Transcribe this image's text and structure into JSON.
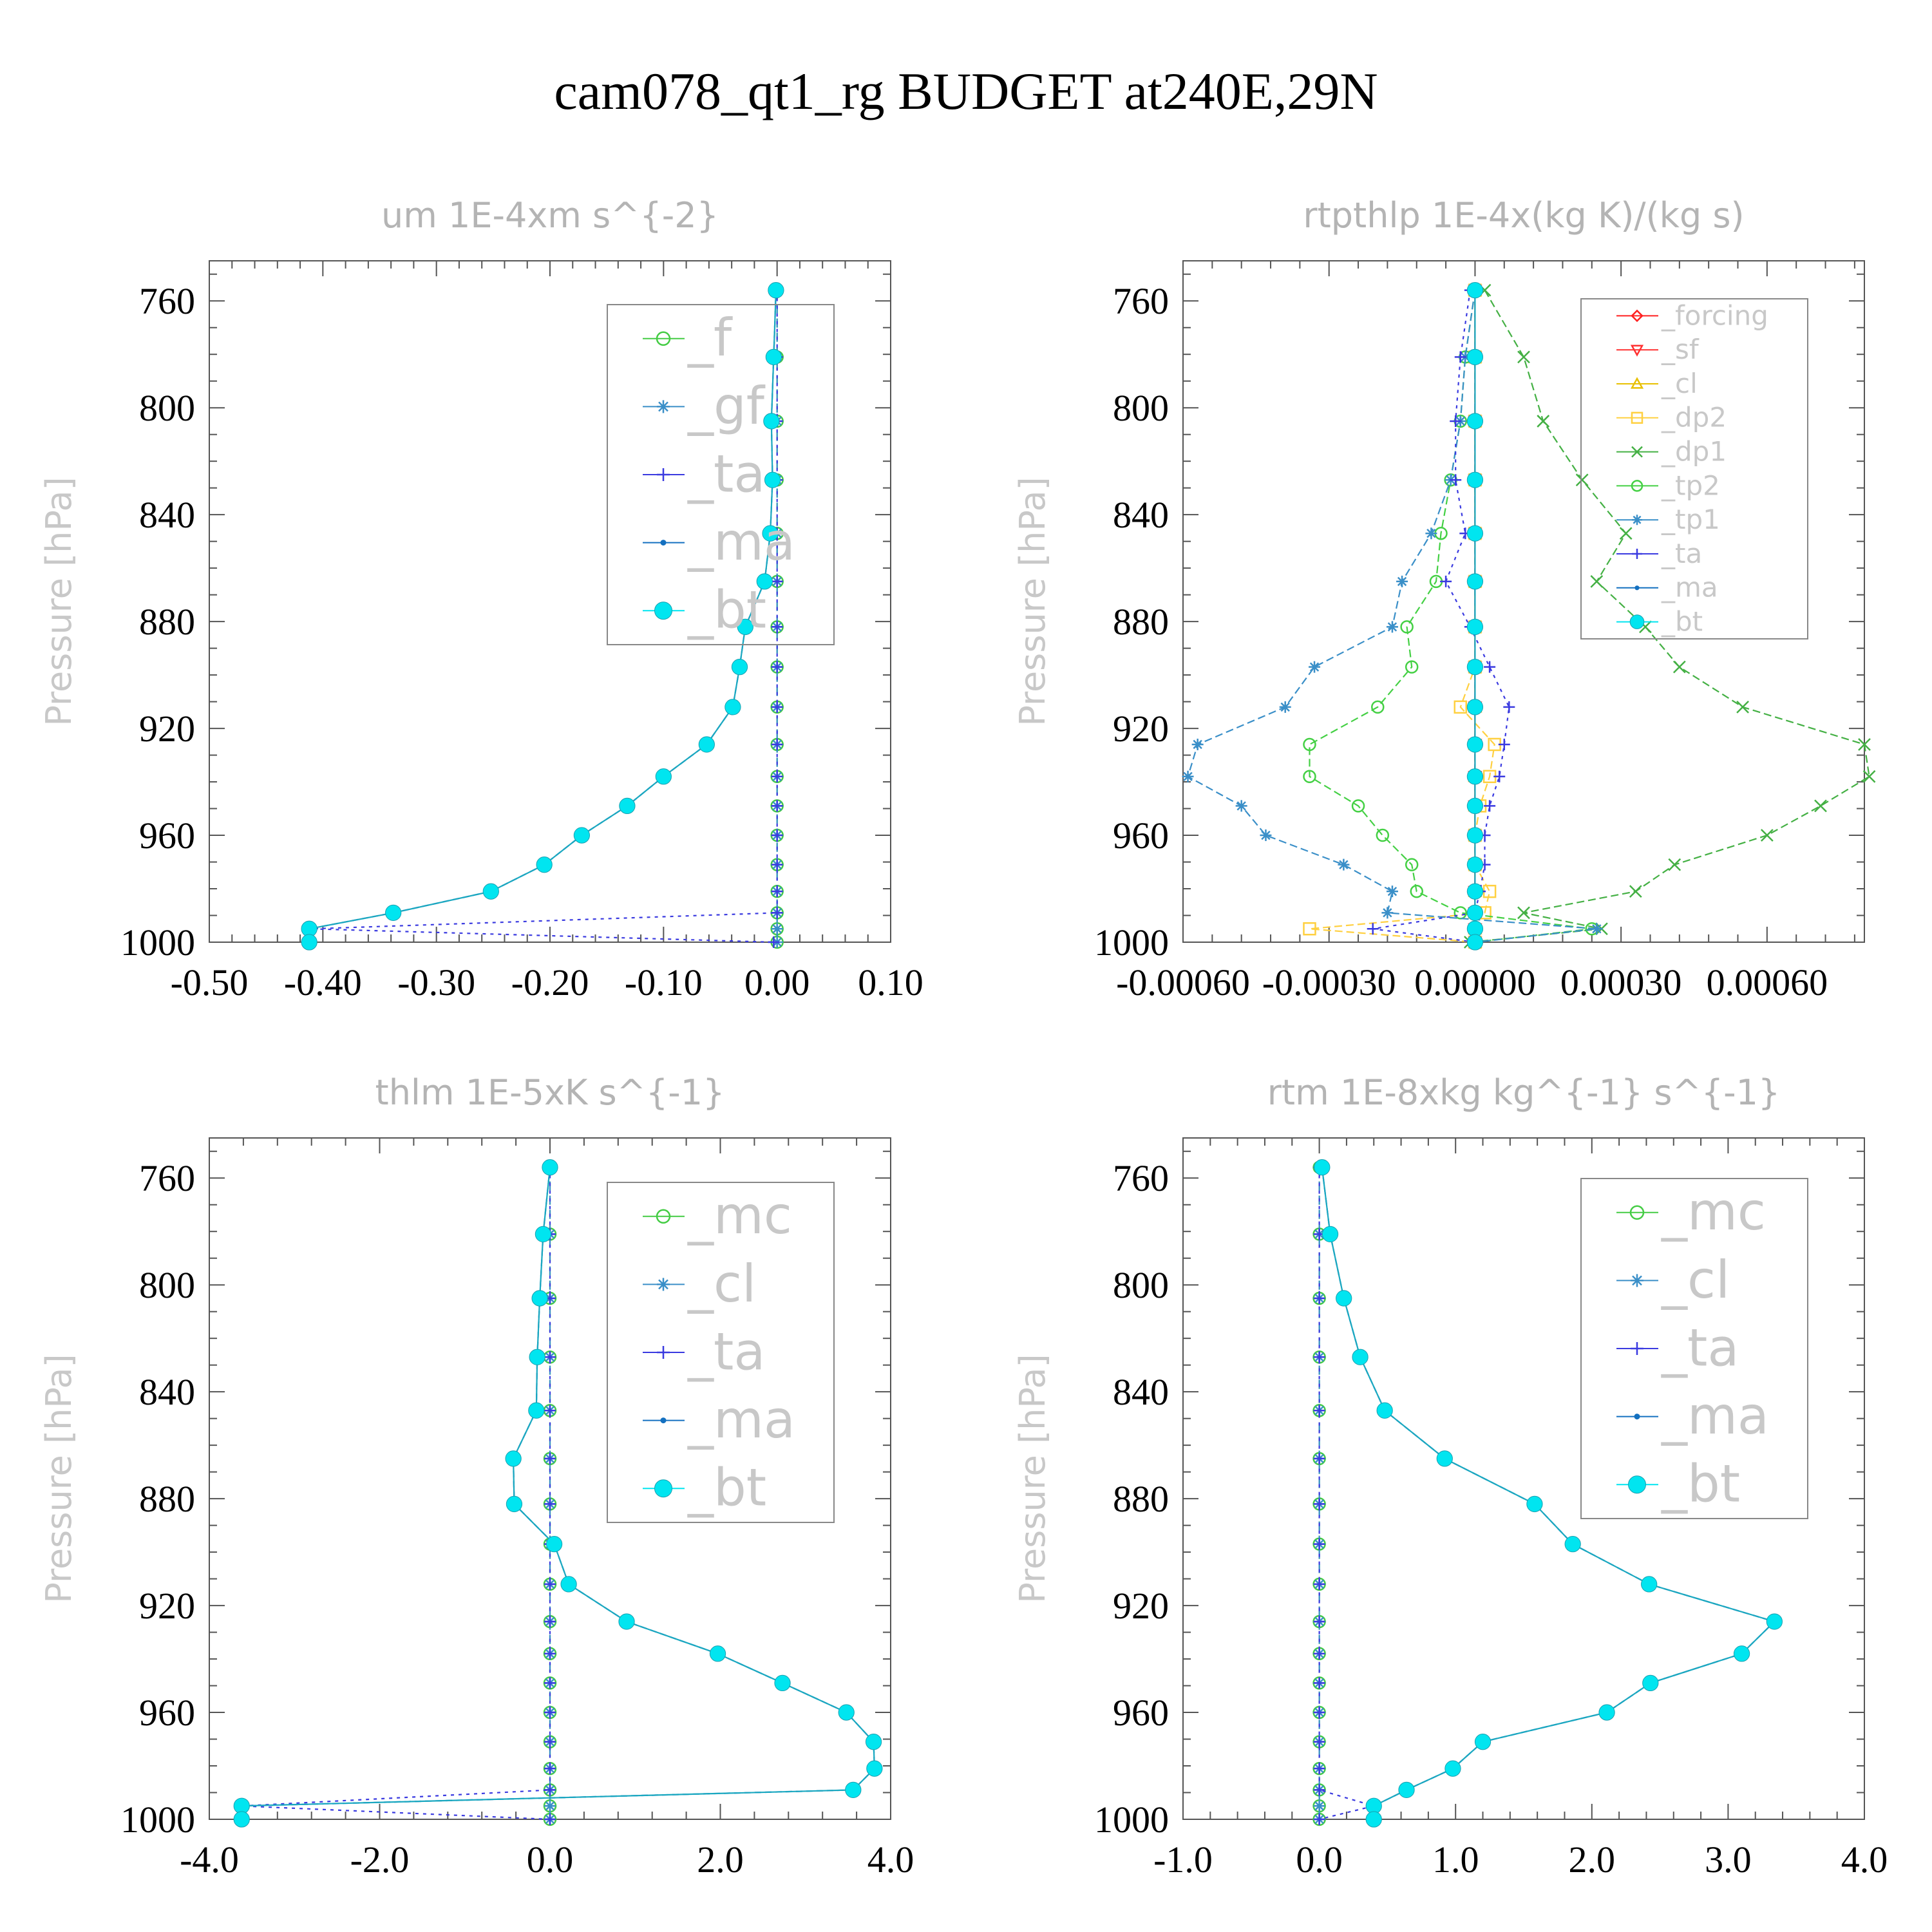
{
  "figure_title": "cam078_qt1_rg  BUDGET at240E,29N",
  "colors": {
    "_f": "#44cc44",
    "_gf": "#3a8fc8",
    "_ta": "#3a3ae0",
    "_ma": "#1470c0",
    "_bt": "#00e5f0",
    "_forcing": "#ff2020",
    "_sf": "#ff3030",
    "_cl": "#e8c000",
    "_dp2": "#ffd040",
    "_dp1": "#44b044",
    "_tp2": "#44d044",
    "_tp1": "#3a8fc8",
    "_mc": "#44cc44",
    "_cl_b": "#3a8fc8"
  },
  "chart_data": [
    {
      "type": "line",
      "title": "um  1E-4xm s^{-2}",
      "ylabel": "Pressure [hPa]",
      "xlim": [
        -0.5,
        0.1
      ],
      "ylim": [
        1000,
        745
      ],
      "xticks": [
        "-0.50",
        "-0.40",
        "-0.30",
        "-0.20",
        "-0.10",
        "0.00",
        "0.10"
      ],
      "xtick_values": [
        -0.5,
        -0.4,
        -0.3,
        -0.2,
        -0.1,
        0.0,
        0.1
      ],
      "yticks": [
        "760",
        "800",
        "840",
        "880",
        "920",
        "960",
        "1000"
      ],
      "ytick_values": [
        760,
        800,
        840,
        880,
        920,
        960,
        1000
      ],
      "pressure": [
        756,
        781,
        805,
        827,
        847,
        865,
        882,
        897,
        912,
        926,
        938,
        949,
        960,
        971,
        981,
        989,
        995,
        1000
      ],
      "series": [
        {
          "name": "_f",
          "color": "_f",
          "marker": "circle",
          "dash": "14,8",
          "values": [
            0,
            0,
            0,
            0,
            0,
            0,
            0,
            0,
            0,
            0,
            0,
            0,
            0,
            0,
            0,
            0,
            0,
            0
          ]
        },
        {
          "name": "_gf",
          "color": "_gf",
          "marker": "star",
          "dash": "14,8",
          "values": [
            0,
            0,
            0,
            0,
            0,
            0,
            0,
            0,
            0,
            0,
            0,
            0,
            0,
            0,
            0,
            0,
            0,
            0
          ]
        },
        {
          "name": "_ta",
          "color": "_ta",
          "marker": "plus",
          "dash": "5,7",
          "values": [
            0,
            0,
            0,
            0,
            0,
            0,
            0,
            0,
            0,
            0,
            0,
            0,
            0,
            0,
            0,
            0,
            -0.41,
            -0.003
          ]
        },
        {
          "name": "_ma",
          "color": "_ma",
          "marker": "dot",
          "dash": "10,6",
          "values": [
            -0.001,
            -0.003,
            -0.005,
            -0.004,
            -0.006,
            -0.011,
            -0.028,
            -0.033,
            -0.039,
            -0.062,
            -0.1,
            -0.132,
            -0.172,
            -0.205,
            -0.252,
            -0.338,
            -0.412,
            -0.412
          ]
        },
        {
          "name": "_bt",
          "color": "_bt",
          "marker": "bigdot",
          "dash": "none",
          "values": [
            -0.001,
            -0.003,
            -0.005,
            -0.004,
            -0.006,
            -0.011,
            -0.028,
            -0.033,
            -0.039,
            -0.062,
            -0.1,
            -0.132,
            -0.172,
            -0.205,
            -0.252,
            -0.338,
            -0.412,
            -0.412
          ]
        }
      ],
      "legend": [
        "_f",
        "_gf",
        "_ta",
        "_ma",
        "_bt"
      ]
    },
    {
      "type": "line",
      "title": "rtpthlp  1E-4x(kg K)/(kg s)",
      "ylabel": "Pressure [hPa]",
      "xlim": [
        -0.0006,
        0.0008
      ],
      "ylim": [
        1000,
        745
      ],
      "xticks": [
        "-0.00060",
        "-0.00030",
        "0.00000",
        "0.00030",
        "0.00060"
      ],
      "xtick_values": [
        -0.0006,
        -0.0003,
        0.0,
        0.0003,
        0.0006
      ],
      "yticks": [
        "760",
        "800",
        "840",
        "880",
        "920",
        "960",
        "1000"
      ],
      "ytick_values": [
        760,
        800,
        840,
        880,
        920,
        960,
        1000
      ],
      "pressure": [
        756,
        781,
        805,
        827,
        847,
        865,
        882,
        897,
        912,
        926,
        938,
        949,
        960,
        971,
        981,
        989,
        995,
        1000
      ],
      "series": [
        {
          "name": "_forcing",
          "color": "_forcing",
          "marker": "diamond",
          "dash": "none",
          "values": [
            0,
            0,
            0,
            0,
            0,
            0,
            0,
            0,
            0,
            0,
            0,
            0,
            0,
            0,
            0,
            0,
            0,
            0
          ]
        },
        {
          "name": "_sf",
          "color": "_sf",
          "marker": "tri-down",
          "dash": "12,6",
          "values": [
            0,
            0,
            0,
            0,
            0,
            0,
            0,
            0,
            0,
            0,
            0,
            0,
            0,
            0,
            0,
            0,
            0,
            0
          ]
        },
        {
          "name": "_cl",
          "color": "_cl",
          "marker": "tri-up",
          "dash": "12,6",
          "values": [
            0,
            0,
            0,
            0,
            0,
            0,
            0,
            0,
            0,
            0,
            0,
            0,
            0,
            0,
            0,
            0,
            0,
            0
          ]
        },
        {
          "name": "_dp2",
          "color": "_dp2",
          "marker": "square",
          "dash": "12,6",
          "values": [
            0,
            0,
            0,
            0,
            0,
            0,
            0,
            0,
            -3e-05,
            4e-05,
            3e-05,
            1e-05,
            0,
            0,
            3e-05,
            2e-05,
            -0.00034,
            0
          ]
        },
        {
          "name": "_dp1",
          "color": "_dp1",
          "marker": "cross",
          "dash": "12,6",
          "values": [
            2e-05,
            0.0001,
            0.00014,
            0.00022,
            0.00031,
            0.00025,
            0.00035,
            0.00042,
            0.00055,
            0.0008,
            0.00081,
            0.00071,
            0.0006,
            0.00041,
            0.00033,
            0.0001,
            0.00026,
            -1e-05
          ]
        },
        {
          "name": "_tp2",
          "color": "_tp2",
          "marker": "circle",
          "dash": "12,6",
          "values": [
            0,
            -2e-05,
            -3e-05,
            -5e-05,
            -7e-05,
            -8e-05,
            -0.00014,
            -0.00013,
            -0.0002,
            -0.00034,
            -0.00034,
            -0.00024,
            -0.00019,
            -0.00013,
            -0.00012,
            -3e-05,
            0.00024,
            0
          ]
        },
        {
          "name": "_tp1",
          "color": "_tp1",
          "marker": "star",
          "dash": "12,6",
          "values": [
            0,
            -2e-05,
            -3e-05,
            -5e-05,
            -9e-05,
            -0.00015,
            -0.00017,
            -0.00033,
            -0.00039,
            -0.00057,
            -0.00059,
            -0.00048,
            -0.00043,
            -0.00027,
            -0.00017,
            -0.00018,
            0.00025,
            0
          ]
        },
        {
          "name": "_ta",
          "color": "_ta",
          "marker": "plus",
          "dash": "5,7",
          "values": [
            -1e-05,
            -3e-05,
            -4e-05,
            -4e-05,
            -2e-05,
            -6e-05,
            -1e-05,
            3e-05,
            7e-05,
            6e-05,
            5e-05,
            3e-05,
            2e-05,
            2e-05,
            1e-05,
            0,
            -0.00021,
            0
          ]
        },
        {
          "name": "_ma",
          "color": "_ma",
          "marker": "dot",
          "dash": "10,6",
          "values": [
            0,
            0,
            0,
            0,
            0,
            0,
            0,
            0,
            0,
            0,
            0,
            0,
            0,
            0,
            0,
            0,
            0,
            0
          ]
        },
        {
          "name": "_bt",
          "color": "_bt",
          "marker": "bigdot",
          "dash": "none",
          "values": [
            0,
            0,
            0,
            0,
            0,
            0,
            0,
            0,
            0,
            0,
            0,
            0,
            0,
            0,
            0,
            0,
            0,
            0
          ]
        }
      ],
      "legend": [
        "_forcing",
        "_sf",
        "_cl",
        "_dp2",
        "_dp1",
        "_tp2",
        "_tp1",
        "_ta",
        "_ma",
        "_bt"
      ]
    },
    {
      "type": "line",
      "title": "thlm  1E-5xK s^{-1}",
      "ylabel": "Pressure [hPa]",
      "xlim": [
        -4.0,
        4.0
      ],
      "ylim": [
        1000,
        745
      ],
      "xticks": [
        "-4.0",
        "-2.0",
        "0.0",
        "2.0",
        "4.0"
      ],
      "xtick_values": [
        -4.0,
        -2.0,
        0.0,
        2.0,
        4.0
      ],
      "yticks": [
        "760",
        "800",
        "840",
        "880",
        "920",
        "960",
        "1000"
      ],
      "ytick_values": [
        760,
        800,
        840,
        880,
        920,
        960,
        1000
      ],
      "pressure": [
        756,
        781,
        805,
        827,
        847,
        865,
        882,
        897,
        912,
        926,
        938,
        949,
        960,
        971,
        981,
        989,
        995,
        1000
      ],
      "series": [
        {
          "name": "_mc",
          "color": "_mc",
          "marker": "circle",
          "dash": "14,8",
          "values": [
            0,
            0,
            0,
            0,
            0,
            0,
            0,
            0,
            0,
            0,
            0,
            0,
            0,
            0,
            0,
            0,
            0,
            0
          ]
        },
        {
          "name": "_cl",
          "color": "_cl_b",
          "marker": "star",
          "dash": "14,8",
          "values": [
            0,
            0,
            0,
            0,
            0,
            0,
            0,
            0,
            0,
            0,
            0,
            0,
            0,
            0,
            0,
            0,
            0,
            0
          ]
        },
        {
          "name": "_ta",
          "color": "_ta",
          "marker": "plus",
          "dash": "5,7",
          "values": [
            0,
            0,
            0,
            0,
            0,
            0,
            0,
            0,
            0,
            0,
            0,
            0,
            0,
            0,
            0,
            0,
            -3.62,
            0
          ]
        },
        {
          "name": "_ma",
          "color": "_ma",
          "marker": "dot",
          "dash": "10,6",
          "values": [
            0,
            -0.08,
            -0.12,
            -0.15,
            -0.16,
            -0.43,
            -0.42,
            0.05,
            0.22,
            0.9,
            1.97,
            2.73,
            3.48,
            3.8,
            3.81,
            3.56,
            -3.62,
            -3.62
          ]
        },
        {
          "name": "_bt",
          "color": "_bt",
          "marker": "bigdot",
          "dash": "none",
          "values": [
            0,
            -0.08,
            -0.12,
            -0.15,
            -0.16,
            -0.43,
            -0.42,
            0.05,
            0.22,
            0.9,
            1.97,
            2.73,
            3.48,
            3.8,
            3.81,
            3.56,
            -3.62,
            -3.62
          ]
        }
      ],
      "legend": [
        "_mc",
        "_cl",
        "_ta",
        "_ma",
        "_bt"
      ]
    },
    {
      "type": "line",
      "title": "rtm  1E-8xkg kg^{-1} s^{-1}",
      "ylabel": "Pressure [hPa]",
      "xlim": [
        -1.0,
        4.0
      ],
      "ylim": [
        1000,
        745
      ],
      "xticks": [
        "-1.0",
        "0.0",
        "1.0",
        "2.0",
        "3.0",
        "4.0"
      ],
      "xtick_values": [
        -1.0,
        0.0,
        1.0,
        2.0,
        3.0,
        4.0
      ],
      "yticks": [
        "760",
        "800",
        "840",
        "880",
        "920",
        "960",
        "1000"
      ],
      "ytick_values": [
        760,
        800,
        840,
        880,
        920,
        960,
        1000
      ],
      "pressure": [
        756,
        781,
        805,
        827,
        847,
        865,
        882,
        897,
        912,
        926,
        938,
        949,
        960,
        971,
        981,
        989,
        995,
        1000
      ],
      "series": [
        {
          "name": "_mc",
          "color": "_mc",
          "marker": "circle",
          "dash": "14,8",
          "values": [
            0,
            0,
            0,
            0,
            0,
            0,
            0,
            0,
            0,
            0,
            0,
            0,
            0,
            0,
            0,
            0,
            0,
            0
          ]
        },
        {
          "name": "_cl",
          "color": "_cl_b",
          "marker": "star",
          "dash": "14,8",
          "values": [
            0,
            0,
            0,
            0,
            0,
            0,
            0,
            0,
            0,
            0,
            0,
            0,
            0,
            0,
            0,
            0,
            0,
            0
          ]
        },
        {
          "name": "_ta",
          "color": "_ta",
          "marker": "plus",
          "dash": "5,7",
          "values": [
            0,
            0,
            0,
            0,
            0,
            0,
            0,
            0,
            0,
            0,
            0,
            0,
            0,
            0,
            0,
            0,
            0.4,
            0
          ]
        },
        {
          "name": "_ma",
          "color": "_ma",
          "marker": "dot",
          "dash": "10,6",
          "values": [
            0.02,
            0.08,
            0.18,
            0.3,
            0.48,
            0.92,
            1.58,
            1.86,
            2.42,
            3.34,
            3.1,
            2.43,
            2.11,
            1.2,
            0.98,
            0.64,
            0.4,
            0.4
          ]
        },
        {
          "name": "_bt",
          "color": "_bt",
          "marker": "bigdot",
          "dash": "none",
          "values": [
            0.02,
            0.08,
            0.18,
            0.3,
            0.48,
            0.92,
            1.58,
            1.86,
            2.42,
            3.34,
            3.1,
            2.43,
            2.11,
            1.2,
            0.98,
            0.64,
            0.4,
            0.4
          ]
        }
      ],
      "legend": [
        "_mc",
        "_cl",
        "_ta",
        "_ma",
        "_bt"
      ]
    }
  ]
}
